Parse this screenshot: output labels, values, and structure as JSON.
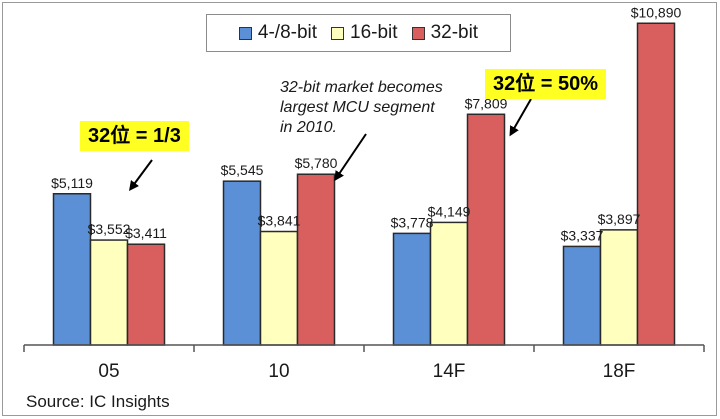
{
  "colors": {
    "series": [
      "#5b8fd6",
      "#ffffbe",
      "#d95f5f"
    ],
    "stroke": "#2a2a2a",
    "callout_bg": "#ffff22"
  },
  "chart_data": {
    "type": "bar",
    "categories": [
      "05",
      "10",
      "14F",
      "18F"
    ],
    "series": [
      {
        "name": "4-/8-bit",
        "values": [
          5119,
          5545,
          3778,
          3337
        ],
        "labels": [
          "$5,119",
          "$5,545",
          "$3,778",
          "$3,337"
        ]
      },
      {
        "name": "16-bit",
        "values": [
          3552,
          3841,
          4149,
          3897
        ],
        "labels": [
          "$3,552",
          "$3,841",
          "$4,149",
          "$3,897"
        ]
      },
      {
        "name": "32-bit",
        "values": [
          3411,
          5780,
          7809,
          10890
        ],
        "labels": [
          "$3,411",
          "$5,780",
          "$7,809",
          "$10,890"
        ]
      }
    ],
    "ylim": [
      0,
      11000
    ],
    "legend_position": "top-center",
    "grid": false
  },
  "callouts": [
    {
      "text": "32位 = 1/3"
    },
    {
      "text": "32位 = 50%"
    }
  ],
  "note_lines": [
    "32-bit market becomes",
    "largest MCU segment",
    "in 2010."
  ],
  "source": "Source:  IC Insights"
}
